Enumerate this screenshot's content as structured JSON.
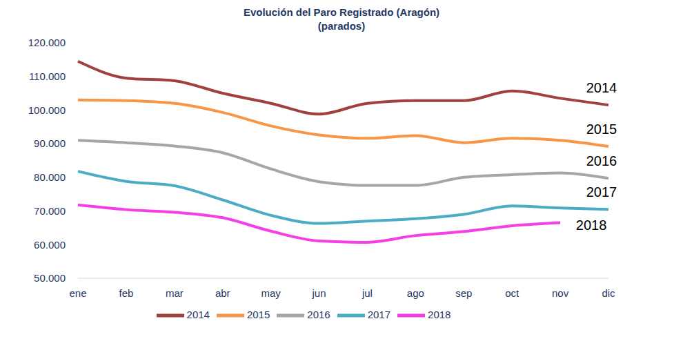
{
  "chart_data": {
    "type": "line",
    "title": "Evolución del Paro Registrado (Aragón)",
    "subtitle": "(parados)",
    "categories": [
      "ene",
      "feb",
      "mar",
      "abr",
      "may",
      "jun",
      "jul",
      "ago",
      "sep",
      "oct",
      "nov",
      "dic"
    ],
    "series": [
      {
        "name": "2014",
        "color": "#a0403f",
        "values": [
          114500,
          109500,
          108700,
          105000,
          102000,
          98800,
          102000,
          102800,
          102800,
          105700,
          103500,
          101500
        ]
      },
      {
        "name": "2015",
        "color": "#f79646",
        "values": [
          103000,
          102800,
          102000,
          99300,
          95300,
          92600,
          91600,
          92400,
          90300,
          91600,
          91000,
          89200
        ]
      },
      {
        "name": "2016",
        "color": "#a6a6a6",
        "values": [
          91000,
          90300,
          89300,
          87300,
          82500,
          78700,
          77600,
          77600,
          80000,
          80800,
          81300,
          79700
        ]
      },
      {
        "name": "2017",
        "color": "#4bacc6",
        "values": [
          81800,
          78800,
          77500,
          73300,
          68700,
          66300,
          67000,
          67700,
          69000,
          71500,
          70900,
          70500
        ]
      },
      {
        "name": "2018",
        "color": "#f53ee8",
        "values": [
          71800,
          70400,
          69600,
          68000,
          64000,
          61100,
          60700,
          62700,
          63900,
          65600,
          66500,
          null
        ]
      }
    ],
    "ylim": [
      50000,
      120000
    ],
    "yticks": [
      {
        "value": 50000,
        "label": "50.000"
      },
      {
        "value": 60000,
        "label": "60.000"
      },
      {
        "value": 70000,
        "label": "70.000"
      },
      {
        "value": 80000,
        "label": "80.000"
      },
      {
        "value": 90000,
        "label": "90.000"
      },
      {
        "value": 100000,
        "label": "100.000"
      },
      {
        "value": 110000,
        "label": "110.000"
      },
      {
        "value": 120000,
        "label": "120.000"
      }
    ],
    "grid": false,
    "legend": "bottom"
  }
}
